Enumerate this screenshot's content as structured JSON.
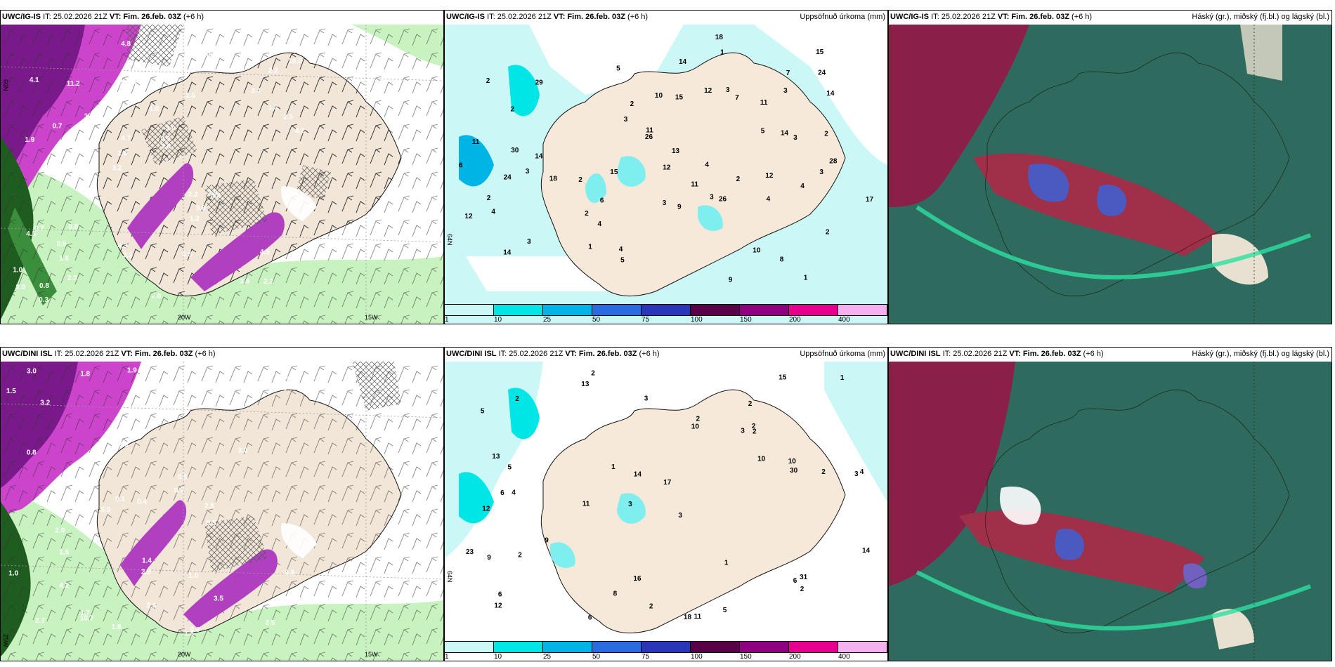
{
  "panels": {
    "p1": {
      "model": "UWC/IG-IS",
      "it": "IT: 25.02.2026 21Z",
      "vt": "VT: Fim. 26.feb. 03Z",
      "lead": "(+6 h)",
      "right": ""
    },
    "p2": {
      "model": "UWC/IG-IS",
      "it": "IT: 25.02.2026 21Z",
      "vt": "VT: Fim. 26.feb. 03Z",
      "lead": "(+6 h)",
      "right": "Uppsöfnuð úrkoma (mm)"
    },
    "p3": {
      "model": "UWC/IG-IS",
      "it": "IT: 25.02.2026 21Z",
      "vt": "VT: Fim. 26.feb. 03Z",
      "lead": "(+6 h)",
      "right": "Háský (gr.), miðský (fj.bl.) og lágský (bl.)"
    },
    "p4": {
      "model": "UWC/DINI ISL",
      "it": "IT: 25.02.2026 21Z",
      "vt": "VT: Fim. 26.feb. 03Z",
      "lead": "(+6 h)",
      "right": ""
    },
    "p5": {
      "model": "UWC/DINI ISL",
      "it": "IT: 25.02.2026 21Z",
      "vt": "VT: Fim. 26.feb. 03Z",
      "lead": "(+6 h)",
      "right": "Uppsöfnuð úrkoma (mm)"
    },
    "p6": {
      "model": "UWC/DINI ISL",
      "it": "IT: 25.02.2026 21Z",
      "vt": "VT: Fim. 26.feb. 03Z",
      "lead": "(+6 h)",
      "right": "Háský (gr.), miðský (fj.bl.) og lágský (bl.)"
    }
  },
  "axis_labels": {
    "lon20": "20W",
    "lon15": "15W",
    "lon25": "25W",
    "lat66": "66N",
    "lat64": "64N"
  },
  "legend": {
    "ticks": [
      "1",
      "10",
      "25",
      "50",
      "75",
      "100",
      "150",
      "200",
      "400"
    ],
    "colors": [
      "#ccf7f7",
      "#00e5e5",
      "#00b4e6",
      "#2a6be0",
      "#2a36b8",
      "#5a0048",
      "#8e0080",
      "#e60090",
      "#f5b0f0"
    ]
  },
  "precip_labels_top": [
    "1",
    "3",
    "3",
    "2",
    "2",
    "2",
    "3",
    "2",
    "11",
    "10",
    "7",
    "8",
    "4",
    "5",
    "4",
    "4",
    "12",
    "13",
    "11",
    "14",
    "15",
    "15",
    "14",
    "17",
    "28",
    "30",
    "18",
    "12",
    "26",
    "24",
    "26",
    "24",
    "2",
    "3",
    "2",
    "4",
    "3",
    "10",
    "7",
    "9",
    "6",
    "9",
    "1",
    "18",
    "15",
    "14",
    "14",
    "1",
    "12",
    "3",
    "2",
    "2",
    "4",
    "3",
    "3",
    "6",
    "5",
    "11",
    "11",
    "5",
    "4",
    "3",
    "29",
    "14",
    "12",
    "2"
  ],
  "precip_labels_bottom": [
    "2",
    "2",
    "3",
    "3",
    "3",
    "4",
    "5",
    "3",
    "12",
    "10",
    "17",
    "12",
    "13",
    "11",
    "18",
    "11",
    "16",
    "15",
    "10",
    "9",
    "5",
    "6",
    "4",
    "2",
    "23",
    "13",
    "14",
    "30",
    "31",
    "9",
    "6",
    "2",
    "2",
    "1",
    "1",
    "14",
    "10",
    "8",
    "1",
    "3",
    "6",
    "6",
    "5",
    "2",
    "2",
    "2",
    "2",
    "2"
  ],
  "wind_labels_top": [
    "2.2",
    "1.9",
    "2.2",
    "3.2",
    "2.5",
    "0.8",
    "1.1",
    "1.0",
    "0.7",
    "0.7",
    "1.0",
    "1.6",
    "3.4",
    "3.0",
    "4.4",
    "4.1",
    "4.8",
    "4.2",
    "2.2",
    "1.3",
    "2.6",
    "4.3",
    "4.7",
    "11.2",
    "0.6",
    "0.8",
    "3.6",
    "4.5",
    "2.9",
    "2.0",
    "1.4",
    "0.7",
    "1.2",
    "2.3",
    "2.5",
    "0.9",
    "2.0",
    "3.3",
    "2.6",
    "4.3",
    "3.4",
    "10.0",
    "3.6",
    "0.5",
    "0.9",
    "0.3"
  ],
  "wind_labels_bottom": [
    "1.8",
    "1.8",
    "1.7",
    "3.5",
    "1.8",
    "3.2",
    "1.9",
    "2.5",
    "1.9",
    "2.3",
    "3.0",
    "2.6",
    "0.1",
    "2.9",
    "0.6",
    "0.7",
    "0.8",
    "10.7",
    "5.0",
    "1.5",
    "1.0",
    "4.5",
    "0.5",
    "2.7",
    "3.0",
    "2.0",
    "1.0",
    "1.5",
    "3.0",
    "0.5",
    "0.4",
    "0.8",
    "1.4",
    "3.0",
    "4.2",
    "2.8",
    "0.6"
  ]
}
